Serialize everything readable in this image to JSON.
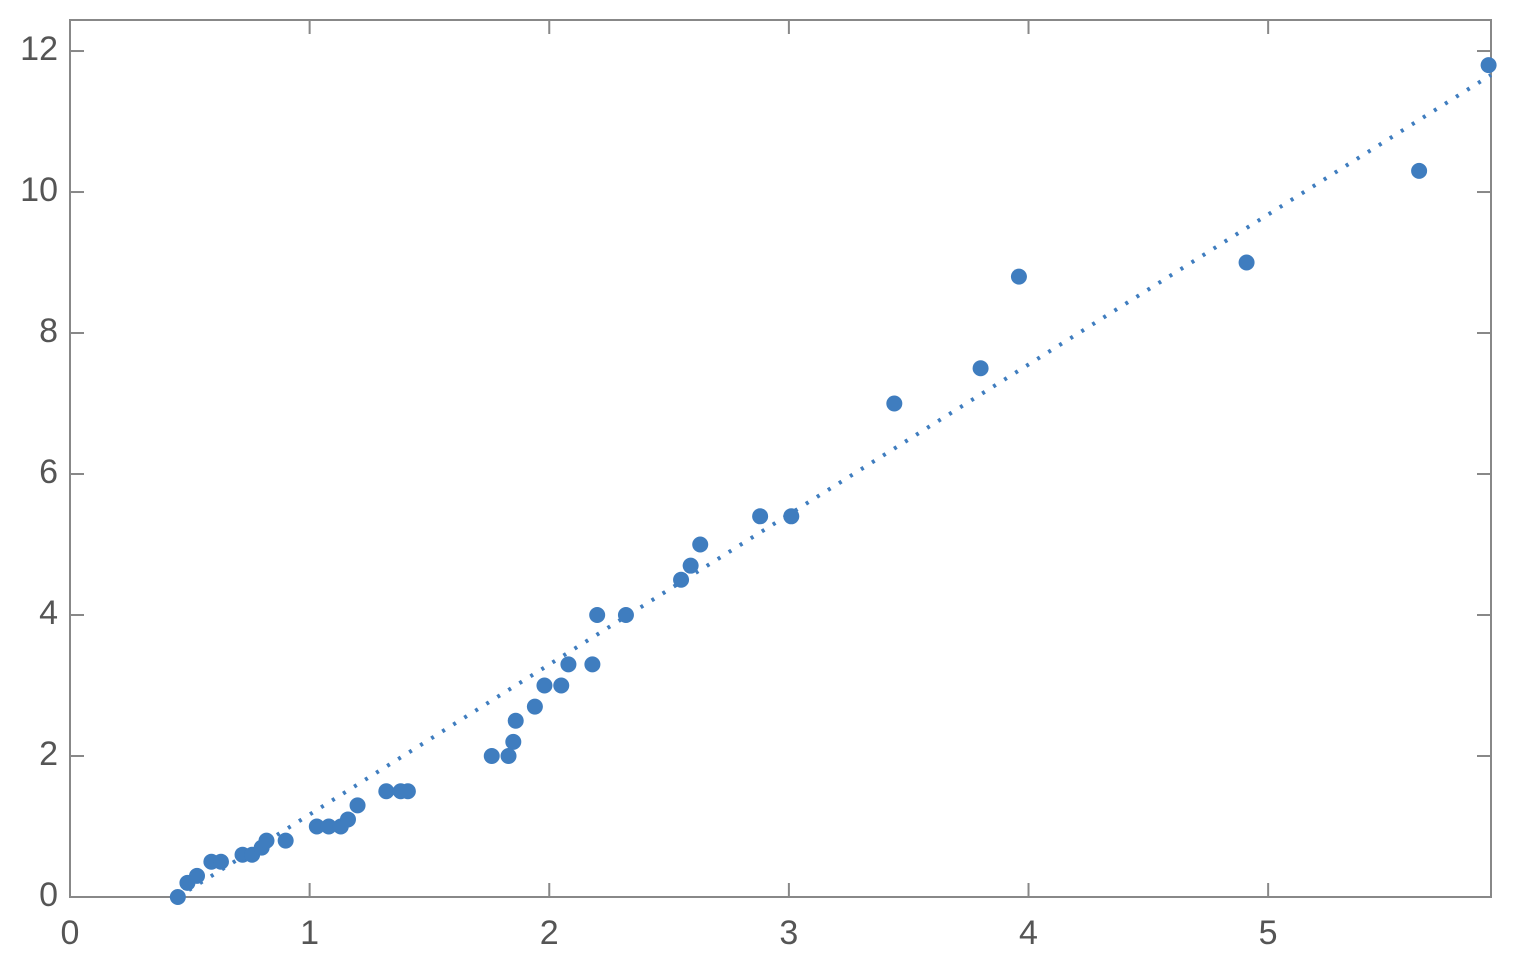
{
  "chart_data": {
    "type": "scatter",
    "xlim": [
      0,
      5.93
    ],
    "ylim": [
      0,
      12.44
    ],
    "xticks": [
      0,
      1,
      2,
      3,
      4,
      5
    ],
    "yticks": [
      0,
      2,
      4,
      6,
      8,
      10,
      12
    ],
    "series": [
      {
        "color": "#3f7dbf",
        "x": [
          0.45,
          0.49,
          0.53,
          0.59,
          0.63,
          0.72,
          0.76,
          0.8,
          0.82,
          0.9,
          1.03,
          1.08,
          1.13,
          1.16,
          1.2,
          1.32,
          1.38,
          1.41,
          1.76,
          1.83,
          1.85,
          1.86,
          1.94,
          1.98,
          2.05,
          2.08,
          2.18,
          2.2,
          2.32,
          2.55,
          2.59,
          2.63,
          2.88,
          3.01,
          3.44,
          3.8,
          3.96,
          4.91,
          5.63,
          5.92
        ],
        "values": [
          0,
          0.2,
          0.3,
          0.5,
          0.5,
          0.6,
          0.6,
          0.7,
          0.8,
          0.8,
          1,
          1,
          1,
          1.1,
          1.3,
          1.5,
          1.5,
          1.5,
          2,
          2,
          2.2,
          2.5,
          2.7,
          3,
          3,
          3.3,
          3.3,
          4,
          4,
          4.5,
          4.7,
          5,
          5.4,
          5.4,
          7,
          7.5,
          8.8,
          9,
          10.3,
          11.8
        ]
      }
    ],
    "fit_line": {
      "color": "#3f7dbf",
      "style": "dotted",
      "x": [
        0.45,
        5.93
      ],
      "values": [
        0,
        11.66
      ]
    }
  }
}
